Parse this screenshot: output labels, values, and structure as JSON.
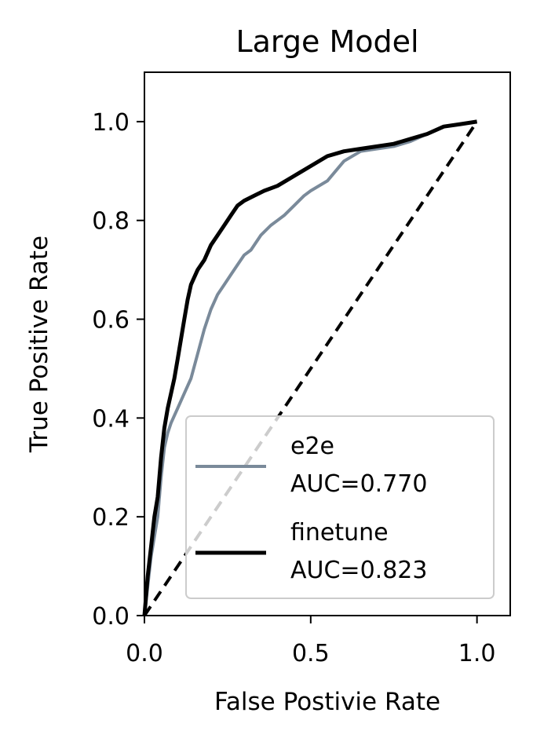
{
  "chart_data": {
    "type": "line",
    "title": "Large Model",
    "xlabel": "False Postivie Rate",
    "ylabel": "True Positive Rate",
    "xlim": [
      0.0,
      1.1
    ],
    "ylim": [
      0.0,
      1.1
    ],
    "xticks": [
      0.0,
      0.5,
      1.0
    ],
    "xtick_labels": [
      "0.0",
      "0.5",
      "1.0"
    ],
    "yticks": [
      0.0,
      0.2,
      0.4,
      0.6,
      0.8,
      1.0
    ],
    "ytick_labels": [
      "0.0",
      "0.2",
      "0.4",
      "0.6",
      "0.8",
      "1.0"
    ],
    "grid": false,
    "legend_position": "lower-right",
    "series": [
      {
        "name": "e2e",
        "auc_label": "AUC=0.770",
        "color": "#7a8a9a",
        "x": [
          0.0,
          0.01,
          0.02,
          0.03,
          0.04,
          0.05,
          0.06,
          0.07,
          0.08,
          0.1,
          0.12,
          0.14,
          0.16,
          0.18,
          0.2,
          0.22,
          0.24,
          0.26,
          0.28,
          0.3,
          0.32,
          0.35,
          0.38,
          0.4,
          0.42,
          0.45,
          0.48,
          0.5,
          0.55,
          0.6,
          0.65,
          0.7,
          0.75,
          0.8,
          0.85,
          0.9,
          0.95,
          1.0
        ],
        "y": [
          0.0,
          0.06,
          0.12,
          0.16,
          0.2,
          0.28,
          0.34,
          0.37,
          0.39,
          0.42,
          0.45,
          0.48,
          0.53,
          0.58,
          0.62,
          0.65,
          0.67,
          0.69,
          0.71,
          0.73,
          0.74,
          0.77,
          0.79,
          0.8,
          0.81,
          0.83,
          0.85,
          0.86,
          0.88,
          0.92,
          0.94,
          0.945,
          0.95,
          0.96,
          0.975,
          0.99,
          0.995,
          1.0
        ]
      },
      {
        "name": "finetune",
        "auc_label": "AUC=0.823",
        "color": "#000000",
        "x": [
          0.0,
          0.01,
          0.02,
          0.03,
          0.04,
          0.05,
          0.06,
          0.07,
          0.08,
          0.09,
          0.1,
          0.11,
          0.12,
          0.13,
          0.14,
          0.16,
          0.18,
          0.2,
          0.22,
          0.24,
          0.26,
          0.28,
          0.3,
          0.33,
          0.36,
          0.4,
          0.45,
          0.5,
          0.55,
          0.6,
          0.65,
          0.7,
          0.75,
          0.8,
          0.85,
          0.9,
          0.95,
          1.0
        ],
        "y": [
          0.0,
          0.08,
          0.14,
          0.2,
          0.24,
          0.32,
          0.38,
          0.42,
          0.45,
          0.48,
          0.52,
          0.56,
          0.6,
          0.64,
          0.67,
          0.7,
          0.72,
          0.75,
          0.77,
          0.79,
          0.81,
          0.83,
          0.84,
          0.85,
          0.86,
          0.87,
          0.89,
          0.91,
          0.93,
          0.94,
          0.945,
          0.95,
          0.955,
          0.965,
          0.975,
          0.99,
          0.995,
          1.0
        ]
      }
    ],
    "reference_line": {
      "style": "dashed",
      "color": "#000000",
      "x": [
        0.0,
        1.0
      ],
      "y": [
        0.0,
        1.0
      ]
    }
  }
}
